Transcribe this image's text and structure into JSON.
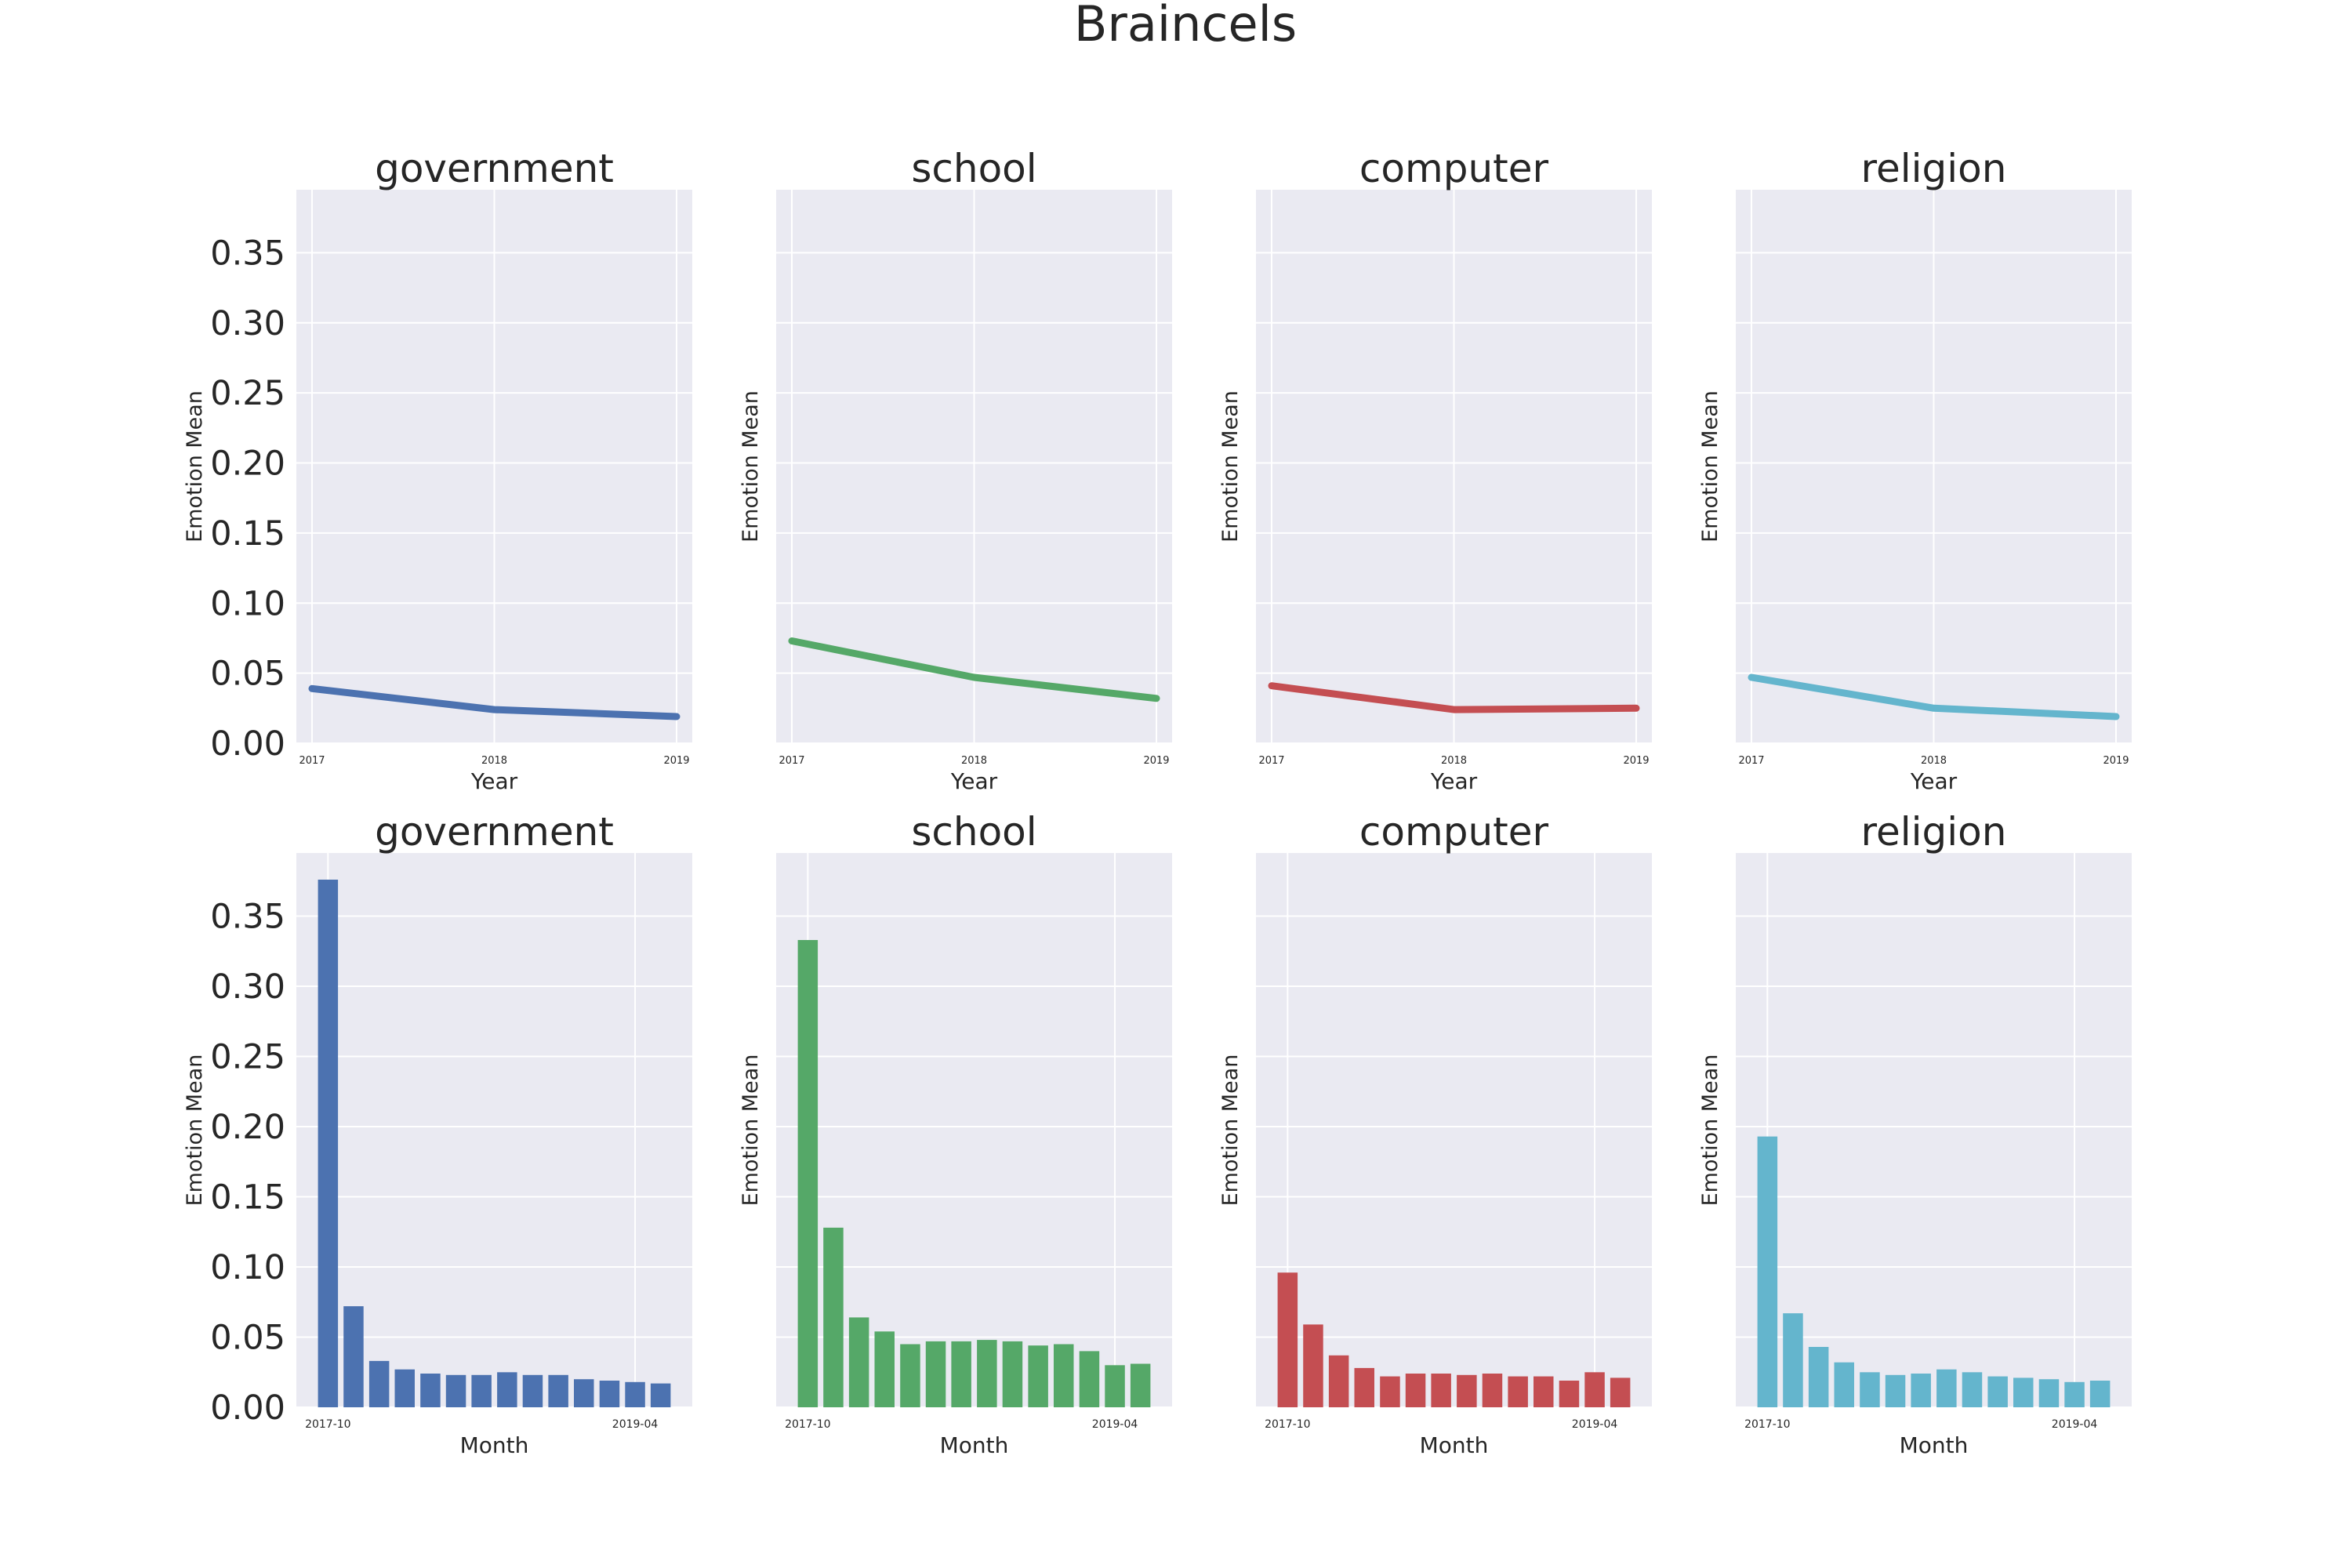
{
  "figure": {
    "title": "Braincels"
  },
  "colors": {
    "government": "#4c72b0",
    "school": "#55a868",
    "computer": "#c44e52",
    "religion": "#64b5cd"
  },
  "chart_data": [
    {
      "type": "line",
      "title": "government",
      "xlabel": "Year",
      "ylabel": "Emotion Mean",
      "x": [
        "2017",
        "2018",
        "2019"
      ],
      "values": [
        0.039,
        0.024,
        0.019
      ],
      "ylim": [
        0,
        0.395
      ],
      "yticks": [
        "0.00",
        "0.05",
        "0.10",
        "0.15",
        "0.20",
        "0.25",
        "0.30",
        "0.35"
      ],
      "grid": true
    },
    {
      "type": "line",
      "title": "school",
      "xlabel": "Year",
      "ylabel": "Emotion Mean",
      "x": [
        "2017",
        "2018",
        "2019"
      ],
      "values": [
        0.073,
        0.047,
        0.032
      ],
      "ylim": [
        0,
        0.395
      ],
      "grid": true
    },
    {
      "type": "line",
      "title": "computer",
      "xlabel": "Year",
      "ylabel": "Emotion Mean",
      "x": [
        "2017",
        "2018",
        "2019"
      ],
      "values": [
        0.041,
        0.024,
        0.025
      ],
      "ylim": [
        0,
        0.395
      ],
      "grid": true
    },
    {
      "type": "line",
      "title": "religion",
      "xlabel": "Year",
      "ylabel": "Emotion Mean",
      "x": [
        "2017",
        "2018",
        "2019"
      ],
      "values": [
        0.047,
        0.025,
        0.019
      ],
      "ylim": [
        0,
        0.395
      ],
      "grid": true
    },
    {
      "type": "bar",
      "title": "government",
      "xlabel": "Month",
      "ylabel": "Emotion Mean",
      "tick_labels": [
        "2017-10",
        "2019-04"
      ],
      "values": [
        0.376,
        0.072,
        0.033,
        0.027,
        0.024,
        0.023,
        0.023,
        0.025,
        0.023,
        0.023,
        0.02,
        0.019,
        0.018,
        0.017
      ],
      "ylim": [
        0,
        0.395
      ],
      "yticks": [
        "0.00",
        "0.05",
        "0.10",
        "0.15",
        "0.20",
        "0.25",
        "0.30",
        "0.35"
      ],
      "grid": true
    },
    {
      "type": "bar",
      "title": "school",
      "xlabel": "Month",
      "ylabel": "Emotion Mean",
      "tick_labels": [
        "2017-10",
        "2019-04"
      ],
      "values": [
        0.333,
        0.128,
        0.064,
        0.054,
        0.045,
        0.047,
        0.047,
        0.048,
        0.047,
        0.044,
        0.045,
        0.04,
        0.03,
        0.031
      ],
      "ylim": [
        0,
        0.395
      ],
      "grid": true
    },
    {
      "type": "bar",
      "title": "computer",
      "xlabel": "Month",
      "ylabel": "Emotion Mean",
      "tick_labels": [
        "2017-10",
        "2019-04"
      ],
      "values": [
        0.096,
        0.059,
        0.037,
        0.028,
        0.022,
        0.024,
        0.024,
        0.023,
        0.024,
        0.022,
        0.022,
        0.019,
        0.025,
        0.021
      ],
      "ylim": [
        0,
        0.395
      ],
      "grid": true
    },
    {
      "type": "bar",
      "title": "religion",
      "xlabel": "Month",
      "ylabel": "Emotion Mean",
      "tick_labels": [
        "2017-10",
        "2019-04"
      ],
      "values": [
        0.193,
        0.067,
        0.043,
        0.032,
        0.025,
        0.023,
        0.024,
        0.027,
        0.025,
        0.022,
        0.021,
        0.02,
        0.018,
        0.019
      ],
      "ylim": [
        0,
        0.395
      ],
      "grid": true
    }
  ]
}
